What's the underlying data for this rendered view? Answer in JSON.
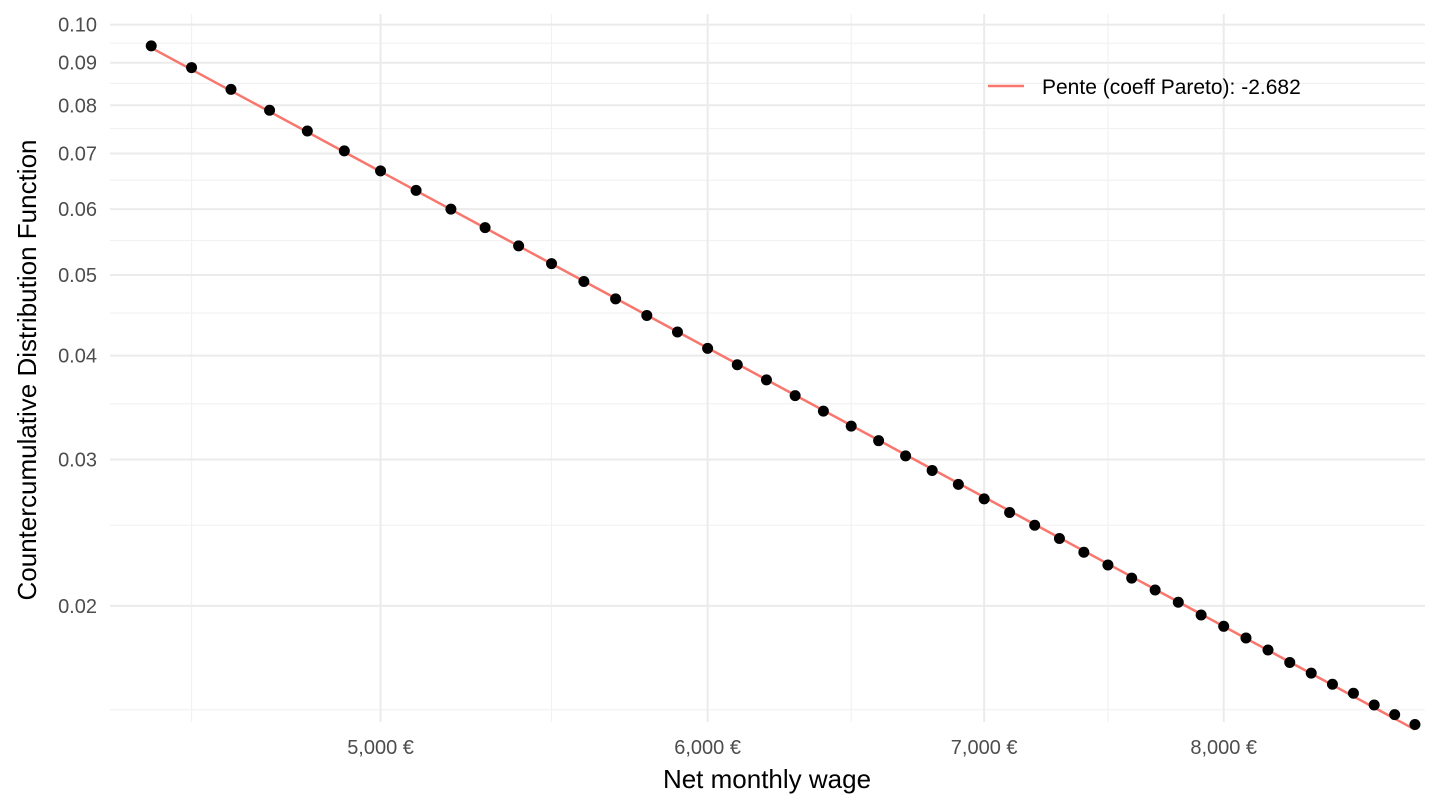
{
  "chart_data": {
    "type": "scatter",
    "title": "",
    "xlabel": "Net monthly wage",
    "ylabel": "Countercumulative Distribution Function",
    "x_scale": "log",
    "y_scale": "log",
    "xlim": [
      4300,
      8950
    ],
    "ylim": [
      0.0145,
      0.103
    ],
    "x_ticks": [
      {
        "value": 5000,
        "label": "5,000 €"
      },
      {
        "value": 6000,
        "label": "6,000 €"
      },
      {
        "value": 7000,
        "label": "7,000 €"
      },
      {
        "value": 8000,
        "label": "8,000 €"
      }
    ],
    "x_minor_ticks": [
      4500,
      5500,
      6500,
      7500
    ],
    "y_ticks": [
      {
        "value": 0.02,
        "label": "0.02"
      },
      {
        "value": 0.03,
        "label": "0.03"
      },
      {
        "value": 0.04,
        "label": "0.04"
      },
      {
        "value": 0.05,
        "label": "0.05"
      },
      {
        "value": 0.06,
        "label": "0.06"
      },
      {
        "value": 0.07,
        "label": "0.07"
      },
      {
        "value": 0.08,
        "label": "0.08"
      },
      {
        "value": 0.09,
        "label": "0.09"
      },
      {
        "value": 0.1,
        "label": "0.10"
      }
    ],
    "y_minor_ticks": [
      0.015,
      0.025,
      0.035,
      0.045,
      0.055,
      0.065,
      0.075,
      0.085,
      0.095
    ],
    "grid": true,
    "legend_position": "top-right",
    "series": [
      {
        "type": "scatter",
        "color": "#000000",
        "x": [
          4400,
          4500,
          4600,
          4700,
          4800,
          4900,
          5000,
          5100,
          5200,
          5300,
          5400,
          5500,
          5600,
          5700,
          5800,
          5900,
          6000,
          6100,
          6200,
          6300,
          6400,
          6500,
          6600,
          6700,
          6800,
          6900,
          7000,
          7100,
          7200,
          7300,
          7400,
          7500,
          7600,
          7700,
          7800,
          7900,
          8000,
          8100,
          8200,
          8300,
          8400,
          8500,
          8600,
          8700,
          8800,
          8900
        ],
        "y": [
          0.0943,
          0.0888,
          0.0836,
          0.0789,
          0.0745,
          0.0705,
          0.0667,
          0.0632,
          0.06,
          0.057,
          0.0542,
          0.0516,
          0.0491,
          0.0468,
          0.0447,
          0.0427,
          0.0408,
          0.039,
          0.0374,
          0.0358,
          0.0343,
          0.0329,
          0.0316,
          0.0303,
          0.0291,
          0.028,
          0.0269,
          0.0259,
          0.025,
          0.0241,
          0.0232,
          0.0224,
          0.0216,
          0.0209,
          0.0202,
          0.0195,
          0.0189,
          0.0183,
          0.0177,
          0.0171,
          0.0166,
          0.0161,
          0.0157,
          0.0152,
          0.0148,
          0.0144
        ]
      },
      {
        "type": "line",
        "name": "Pente (coeff Pareto): -2.682",
        "color": "#F8766D",
        "slope": -2.682,
        "x": [
          4400,
          8900
        ],
        "y": [
          0.0938,
          0.0142
        ]
      }
    ]
  }
}
